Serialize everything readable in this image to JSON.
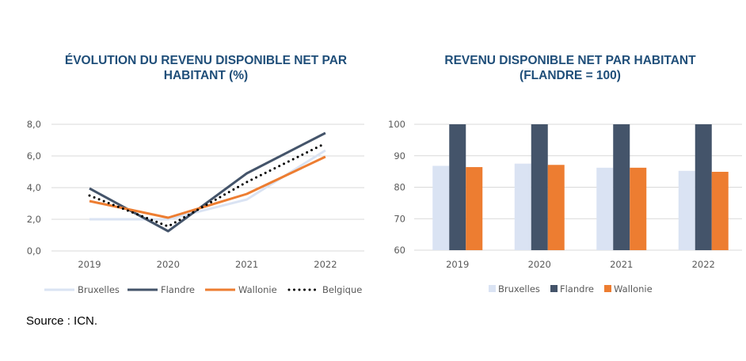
{
  "source": "Source : ICN.",
  "colors": {
    "Bruxelles": "#dae3f3",
    "Flandre": "#44546a",
    "Wallonie": "#ed7d31",
    "Belgique": "#000000",
    "grid": "#d9d9d9",
    "title": "#1f4e79"
  },
  "chart_data": [
    {
      "type": "line",
      "title_line1": "ÉVOLUTION DU REVENU DISPONIBLE NET PAR",
      "title_line2": "HABITANT (%)",
      "xlabel": "",
      "ylabel": "",
      "categories": [
        "2019",
        "2020",
        "2021",
        "2022"
      ],
      "ylim": [
        0,
        8
      ],
      "yticks": [
        "0,0",
        "2,0",
        "4,0",
        "6,0",
        "8,0"
      ],
      "grid": true,
      "legend_position": "bottom",
      "series": [
        {
          "name": "Bruxelles",
          "style": "solid",
          "values": [
            2.0,
            2.0,
            3.25,
            6.35
          ]
        },
        {
          "name": "Flandre",
          "style": "solid",
          "values": [
            3.95,
            1.25,
            4.9,
            7.45
          ]
        },
        {
          "name": "Wallonie",
          "style": "solid",
          "values": [
            3.15,
            2.1,
            3.6,
            5.95
          ]
        },
        {
          "name": "Belgique",
          "style": "dotted",
          "values": [
            3.5,
            1.55,
            4.35,
            6.8
          ]
        }
      ]
    },
    {
      "type": "bar",
      "title_line1": "REVENU DISPONIBLE NET PAR HABITANT",
      "title_line2": "(FLANDRE = 100)",
      "xlabel": "",
      "ylabel": "",
      "categories": [
        "2019",
        "2020",
        "2021",
        "2022"
      ],
      "ylim": [
        60,
        100
      ],
      "yticks": [
        "60",
        "70",
        "80",
        "90",
        "100"
      ],
      "grid": true,
      "legend_position": "bottom",
      "series": [
        {
          "name": "Bruxelles",
          "values": [
            86.8,
            87.5,
            86.2,
            85.2
          ]
        },
        {
          "name": "Flandre",
          "values": [
            100,
            100,
            100,
            100
          ]
        },
        {
          "name": "Wallonie",
          "values": [
            86.4,
            87.1,
            86.2,
            84.9
          ]
        }
      ]
    }
  ]
}
